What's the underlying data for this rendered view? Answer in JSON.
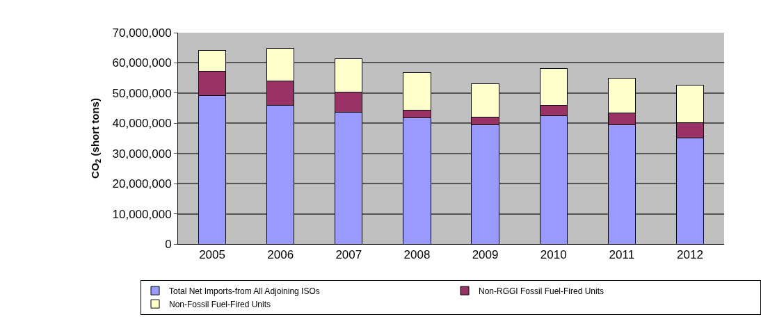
{
  "chart_data": {
    "type": "bar",
    "stacked": true,
    "ylabel": "CO$_{2}$ (short tons)",
    "categories": [
      "2005",
      "2006",
      "2007",
      "2008",
      "2009",
      "2010",
      "2011",
      "2012"
    ],
    "series": [
      {
        "name": "Total Net Imports-from All Adjoining ISOs",
        "color": "#9999ff",
        "values": [
          49100000,
          45900000,
          43700000,
          41700000,
          39400000,
          42400000,
          39400000,
          35200000
        ]
      },
      {
        "name": "Non-RGGI Fossil Fuel-Fired Units",
        "color": "#993366",
        "values": [
          8200000,
          8100000,
          6600000,
          2700000,
          2700000,
          3600000,
          4000000,
          5000000
        ]
      },
      {
        "name": "Non-Fossil Fuel-Fired Units",
        "color": "#ffffcc",
        "values": [
          6900000,
          10900000,
          11000000,
          12400000,
          10900000,
          12100000,
          11600000,
          12400000
        ]
      }
    ],
    "ylim": [
      0,
      70000000
    ],
    "yticks": [
      {
        "value": 0,
        "label": "0"
      },
      {
        "value": 10000000,
        "label": "10,000,000"
      },
      {
        "value": 20000000,
        "label": "20,000,000"
      },
      {
        "value": 30000000,
        "label": "30,000,000"
      },
      {
        "value": 40000000,
        "label": "40,000,000"
      },
      {
        "value": 50000000,
        "label": "50,000,000"
      },
      {
        "value": 60000000,
        "label": "60,000,000"
      },
      {
        "value": 70000000,
        "label": "70,000,000"
      }
    ],
    "grid": "y",
    "legend": "bottom"
  }
}
